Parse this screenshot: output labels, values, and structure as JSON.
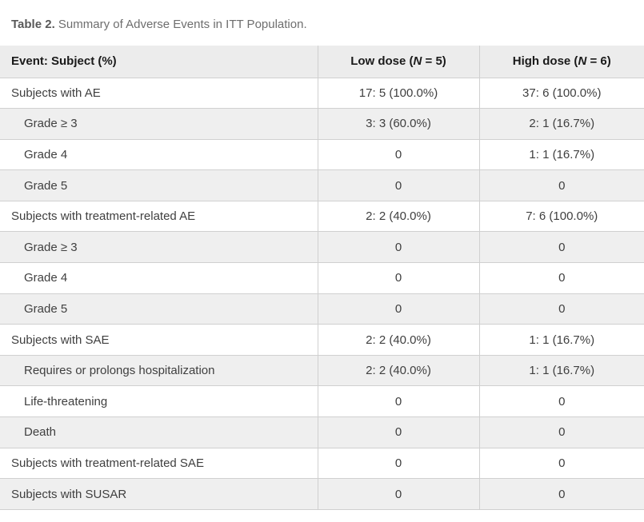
{
  "caption": {
    "label": "Table 2.",
    "text": " Summary of Adverse Events in ITT Population."
  },
  "table": {
    "headers": {
      "event": "Event: Subject (%)",
      "low_dose": {
        "pre": "Low dose (",
        "n": "N",
        "post": " = 5)"
      },
      "high_dose": {
        "pre": "High dose (",
        "n": "N",
        "post": " = 6)"
      }
    },
    "rows": [
      {
        "label": "Subjects with AE",
        "indent": false,
        "low": "17: 5 (100.0%)",
        "high": "37: 6 (100.0%)"
      },
      {
        "label": "Grade ≥ 3",
        "indent": true,
        "low": "3: 3 (60.0%)",
        "high": "2: 1 (16.7%)"
      },
      {
        "label": "Grade 4",
        "indent": true,
        "low": "0",
        "high": "1: 1 (16.7%)"
      },
      {
        "label": "Grade 5",
        "indent": true,
        "low": "0",
        "high": "0"
      },
      {
        "label": "Subjects with treatment-related AE",
        "indent": false,
        "low": "2: 2 (40.0%)",
        "high": "7: 6 (100.0%)"
      },
      {
        "label": "Grade ≥ 3",
        "indent": true,
        "low": "0",
        "high": "0"
      },
      {
        "label": "Grade 4",
        "indent": true,
        "low": "0",
        "high": "0"
      },
      {
        "label": "Grade 5",
        "indent": true,
        "low": "0",
        "high": "0"
      },
      {
        "label": "Subjects with SAE",
        "indent": false,
        "low": "2: 2 (40.0%)",
        "high": "1: 1 (16.7%)"
      },
      {
        "label": "Requires or prolongs hospitalization",
        "indent": true,
        "low": "2: 2 (40.0%)",
        "high": "1: 1 (16.7%)"
      },
      {
        "label": "Life-threatening",
        "indent": true,
        "low": "0",
        "high": "0"
      },
      {
        "label": "Death",
        "indent": true,
        "low": "0",
        "high": "0"
      },
      {
        "label": "Subjects with treatment-related SAE",
        "indent": false,
        "low": "0",
        "high": "0"
      },
      {
        "label": "Subjects with SUSAR",
        "indent": false,
        "low": "0",
        "high": "0"
      }
    ]
  },
  "colors": {
    "header_bg": "#ececec",
    "row_alt_bg": "#efefef",
    "border": "#d0d0d0",
    "body_text": "#3f3f3f",
    "header_text": "#1a1a1a",
    "caption_label": "#595959",
    "caption_text": "#6e6e6e"
  }
}
